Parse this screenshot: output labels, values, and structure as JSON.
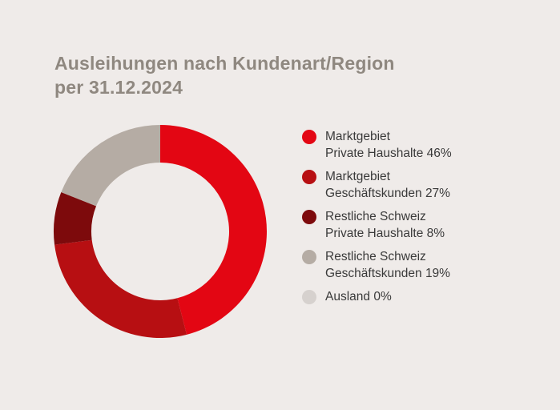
{
  "title": {
    "line1": "Ausleihungen nach Kundenart/Region",
    "line2": "per 31.12.2024"
  },
  "colors": {
    "background": "#efebe9",
    "title": "#8f8880"
  },
  "chart_data": {
    "type": "pie",
    "variant": "donut",
    "title": "Ausleihungen nach Kundenart/Region per 31.12.2024",
    "legend_position": "right",
    "unit": "%",
    "slices": [
      {
        "label_line1": "Marktgebiet",
        "label_line2": "Private Haushalte 46%",
        "value": 46,
        "color": "#e30613"
      },
      {
        "label_line1": "Marktgebiet",
        "label_line2": "Geschäftskunden 27%",
        "value": 27,
        "color": "#b70f12"
      },
      {
        "label_line1": "Restliche Schweiz",
        "label_line2": "Private Haushalte 8%",
        "value": 8,
        "color": "#7d0a0c"
      },
      {
        "label_line1": "Restliche Schweiz",
        "label_line2": "Geschäftskunden 19%",
        "value": 19,
        "color": "#b5aca4"
      },
      {
        "label_line1": "Ausland 0%",
        "label_line2": "",
        "value": 0,
        "color": "#d6d1ce"
      }
    ]
  }
}
